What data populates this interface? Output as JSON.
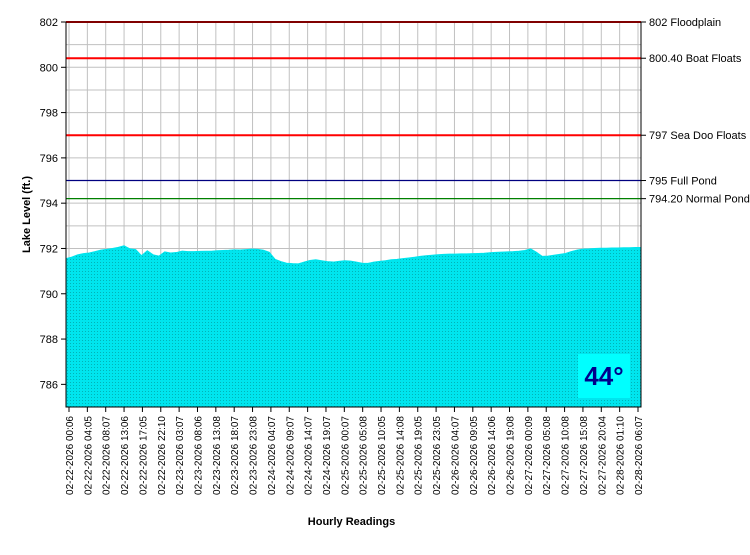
{
  "chart_data": {
    "type": "area",
    "xlabel": "Hourly Readings",
    "ylabel": "Lake Level (ft.)",
    "ylim": [
      785,
      802
    ],
    "y_ticks": [
      786,
      788,
      790,
      792,
      794,
      796,
      798,
      800,
      802
    ],
    "grid": true,
    "x_tick_labels": [
      "02-22-2026 00:06",
      "02-22-2026 04:05",
      "02-22-2026 08:07",
      "02-22-2026 13:06",
      "02-22-2026 17:05",
      "02-22-2026 22:10",
      "02-23-2026 03:07",
      "02-23-2026 08:06",
      "02-23-2026 13:08",
      "02-23-2026 18:07",
      "02-23-2026 23:08",
      "02-24-2026 04:07",
      "02-24-2026 09:07",
      "02-24-2026 14:07",
      "02-24-2026 19:07",
      "02-25-2026 00:07",
      "02-25-2026 05:08",
      "02-25-2026 10:05",
      "02-25-2026 14:08",
      "02-25-2026 19:05",
      "02-25-2026 23:05",
      "02-26-2026 04:07",
      "02-26-2026 09:05",
      "02-26-2026 14:06",
      "02-26-2026 19:08",
      "02-27-2026 00:09",
      "02-27-2026 05:08",
      "02-27-2026 10:08",
      "02-27-2026 15:08",
      "02-27-2026 20:04",
      "02-28-2026 01:10",
      "02-28-2026 06:07"
    ],
    "series": [
      {
        "values": [
          791.55,
          791.62,
          791.72,
          791.77,
          791.8,
          791.86,
          791.93,
          791.96,
          792.0,
          792.05,
          792.12,
          791.98,
          791.95,
          791.68,
          791.9,
          791.72,
          791.66,
          791.85,
          791.8,
          791.82,
          791.88,
          791.86,
          791.86,
          791.87,
          791.88,
          791.88,
          791.9,
          791.91,
          791.92,
          791.94,
          791.93,
          791.95,
          791.97,
          791.96,
          791.92,
          791.83,
          791.52,
          791.42,
          791.35,
          791.33,
          791.32,
          791.4,
          791.47,
          791.5,
          791.46,
          791.42,
          791.4,
          791.43,
          791.46,
          791.44,
          791.4,
          791.35,
          791.34,
          791.4,
          791.43,
          791.46,
          791.5,
          791.52,
          791.55,
          791.58,
          791.61,
          791.65,
          791.68,
          791.7,
          791.72,
          791.74,
          791.75,
          791.75,
          791.76,
          791.76,
          791.77,
          791.78,
          791.79,
          791.81,
          791.83,
          791.84,
          791.85,
          791.86,
          791.88,
          791.91,
          791.98,
          791.83,
          791.65,
          791.66,
          791.7,
          791.74,
          791.78,
          791.86,
          791.93,
          791.97,
          791.98,
          792.0,
          792.01,
          792.01,
          792.02,
          792.02,
          792.03,
          792.03,
          792.04,
          792.04
        ]
      }
    ],
    "reference_lines": [
      {
        "value": 802,
        "label": "802 Floodplain",
        "color": "#ff0000"
      },
      {
        "value": 800.4,
        "label": "800.40 Boat Floats",
        "color": "#ff0000"
      },
      {
        "value": 797,
        "label": "797 Sea Doo Floats",
        "color": "#ff0000"
      },
      {
        "value": 795,
        "label": "795 Full Pond",
        "color": "#000080"
      },
      {
        "value": 794.2,
        "label": "794.20 Normal Pond",
        "color": "#008000"
      }
    ],
    "area_color": "#00e5ee",
    "area_texture_color": "#008b8b",
    "grid_color": "#c0c0c0"
  },
  "badge": {
    "text": "44°",
    "bg": "#00ffff",
    "color": "#00008b"
  }
}
